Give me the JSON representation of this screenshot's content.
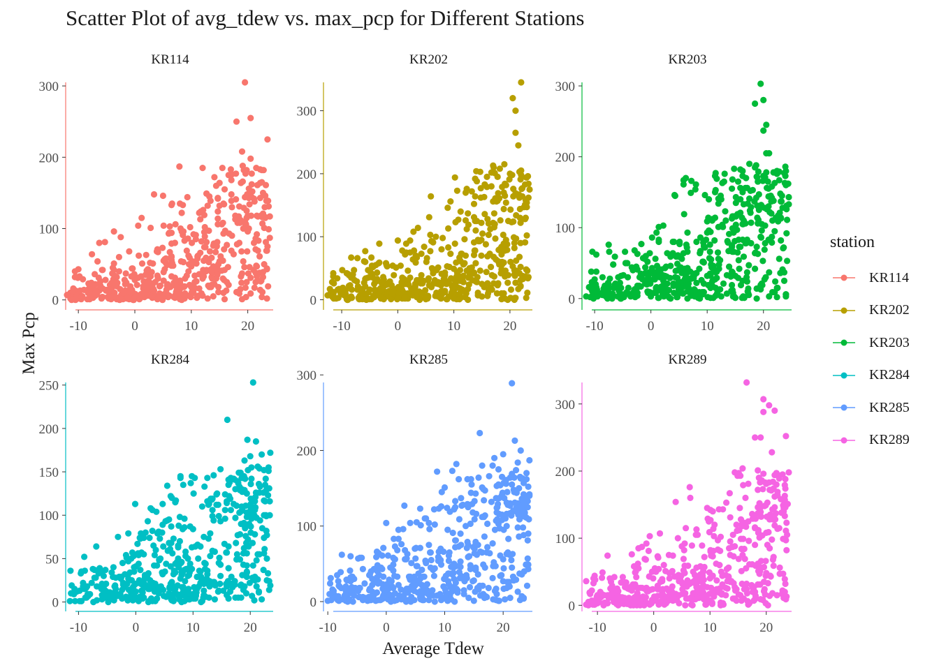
{
  "chart_data": {
    "type": "scatter",
    "title": "Scatter Plot of avg_tdew vs. max_pcp for Different Stations",
    "xlabel": "Average Tdew",
    "ylabel": "Max Pcp",
    "legend_title": "station",
    "legend_position": "right",
    "grid": false,
    "facets": [
      {
        "name": "KR114",
        "color": "#F8766D",
        "xlim": [
          -12,
          24.5
        ],
        "ylim": [
          -13,
          305
        ],
        "yticks": [
          0,
          100,
          200,
          300
        ],
        "xticks": [
          -10,
          0,
          10,
          20
        ],
        "seed": 11,
        "highlights": [
          [
            19.5,
            305
          ],
          [
            20.5,
            255
          ],
          [
            18,
            250
          ],
          [
            23.5,
            225
          ],
          [
            17,
            183
          ],
          [
            19,
            208
          ],
          [
            20.5,
            198
          ],
          [
            21.5,
            185
          ],
          [
            19.8,
            182
          ],
          [
            6,
            93
          ],
          [
            23.5,
            75
          ],
          [
            2,
            63
          ],
          [
            -11,
            12
          ],
          [
            -12,
            7
          ]
        ]
      },
      {
        "name": "KR202",
        "color": "#B79F00",
        "xlim": [
          -13,
          24
        ],
        "ylim": [
          -15,
          345
        ],
        "yticks": [
          0,
          100,
          200,
          300
        ],
        "xticks": [
          -10,
          0,
          10,
          20
        ],
        "seed": 23,
        "highlights": [
          [
            22,
            345
          ],
          [
            20.5,
            320
          ],
          [
            21,
            300
          ],
          [
            19,
            215
          ],
          [
            17,
            213
          ],
          [
            21,
            265
          ],
          [
            21.5,
            245
          ],
          [
            22,
            205
          ],
          [
            23.5,
            175
          ],
          [
            0,
            94
          ],
          [
            6,
            93
          ],
          [
            12.5,
            137
          ],
          [
            -12.5,
            7
          ]
        ]
      },
      {
        "name": "KR203",
        "color": "#00BA38",
        "xlim": [
          -12,
          25
        ],
        "ylim": [
          -15,
          305
        ],
        "yticks": [
          0,
          100,
          200,
          300
        ],
        "xticks": [
          -10,
          0,
          10,
          20
        ],
        "seed": 37,
        "highlights": [
          [
            19.5,
            303
          ],
          [
            20,
            280
          ],
          [
            18.5,
            275
          ],
          [
            20.5,
            245
          ],
          [
            20,
            237
          ],
          [
            20.5,
            205
          ],
          [
            21,
            205
          ],
          [
            17.5,
            190
          ],
          [
            18.5,
            185
          ],
          [
            21.5,
            158
          ],
          [
            24.5,
            143
          ],
          [
            23,
            148
          ],
          [
            1,
            93
          ],
          [
            6.5,
            93
          ],
          [
            -10,
            27
          ],
          [
            -11.5,
            3
          ]
        ]
      },
      {
        "name": "KR284",
        "color": "#00BFC4",
        "xlim": [
          -12,
          24
        ],
        "ylim": [
          -10,
          253
        ],
        "yticks": [
          0,
          50,
          100,
          150,
          200,
          250
        ],
        "xticks": [
          -10,
          0,
          10,
          20
        ],
        "seed": 41,
        "highlights": [
          [
            20.5,
            253
          ],
          [
            16,
            210
          ],
          [
            19.5,
            187
          ],
          [
            21,
            185
          ],
          [
            23.5,
            172
          ],
          [
            22,
            170
          ],
          [
            20,
            168
          ],
          [
            19,
            163
          ],
          [
            7.5,
            88
          ],
          [
            0.5,
            54
          ],
          [
            -11.5,
            1
          ],
          [
            -9.5,
            1
          ]
        ]
      },
      {
        "name": "KR285",
        "color": "#619CFF",
        "xlim": [
          -10.5,
          25
        ],
        "ylim": [
          -12,
          290
        ],
        "yticks": [
          0,
          100,
          200,
          300
        ],
        "xticks": [
          -10,
          0,
          10,
          20
        ],
        "seed": 53,
        "highlights": [
          [
            21.5,
            289
          ],
          [
            16,
            223
          ],
          [
            22,
            213
          ],
          [
            23,
            200
          ],
          [
            24.5,
            187
          ],
          [
            20,
            195
          ],
          [
            18.5,
            190
          ],
          [
            12,
            182
          ],
          [
            22.5,
            184
          ],
          [
            -10,
            1
          ]
        ]
      },
      {
        "name": "KR289",
        "color": "#F564E3",
        "xlim": [
          -12.5,
          24.5
        ],
        "ylim": [
          -8,
          332
        ],
        "yticks": [
          0,
          100,
          200,
          300
        ],
        "xticks": [
          -10,
          0,
          10,
          20
        ],
        "seed": 67,
        "highlights": [
          [
            16.5,
            332
          ],
          [
            19.5,
            307
          ],
          [
            20.5,
            298
          ],
          [
            19.5,
            288
          ],
          [
            21.5,
            290
          ],
          [
            18,
            250
          ],
          [
            19,
            250
          ],
          [
            23.5,
            252
          ],
          [
            21,
            228
          ],
          [
            24,
            198
          ],
          [
            9.5,
            145
          ],
          [
            -12,
            1
          ],
          [
            -10.5,
            1
          ]
        ]
      }
    ]
  }
}
